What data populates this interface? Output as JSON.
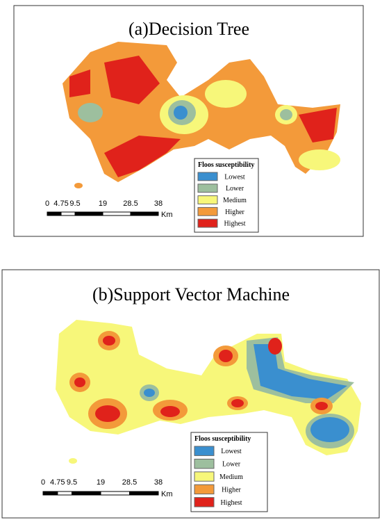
{
  "panels": [
    {
      "title": "(a)Decision Tree",
      "legend": {
        "title": "Floos susceptibility",
        "items": [
          {
            "label": "Lowest",
            "color": "#3a8fcf"
          },
          {
            "label": "Lower",
            "color": "#9dbf9e"
          },
          {
            "label": "Medium",
            "color": "#f7f77a"
          },
          {
            "label": "Higher",
            "color": "#f39a3a"
          },
          {
            "label": "Highest",
            "color": "#e0221b"
          }
        ]
      },
      "scale": {
        "ticks": [
          0,
          4.75,
          9.5,
          19,
          28.5,
          38
        ],
        "unit": "Km"
      }
    },
    {
      "title": "(b)Support Vector Machine",
      "legend": {
        "title": "Floos susceptibility",
        "items": [
          {
            "label": "Lowest",
            "color": "#3a8fcf"
          },
          {
            "label": "Lower",
            "color": "#9dbf9e"
          },
          {
            "label": "Medium",
            "color": "#f7f77a"
          },
          {
            "label": "Higher",
            "color": "#f39a3a"
          },
          {
            "label": "Highest",
            "color": "#e0221b"
          }
        ]
      },
      "scale": {
        "ticks": [
          0,
          4.75,
          9.5,
          19,
          28.5,
          38
        ],
        "unit": "Km"
      }
    }
  ]
}
